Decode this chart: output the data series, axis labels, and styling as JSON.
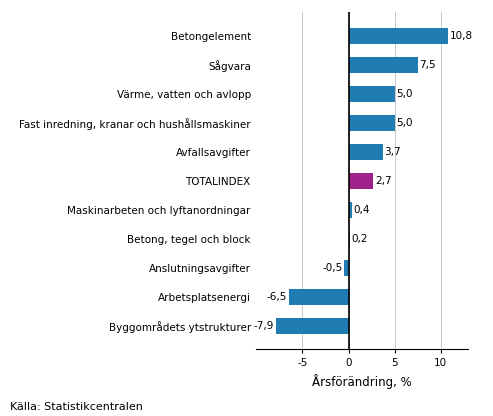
{
  "categories": [
    "Byggområdets ytstrukturer",
    "Arbetsplatsenergi",
    "Anslutningsavgifter",
    "Betong, tegel och block",
    "Maskinarbeten och lyftanordningar",
    "TOTALINDEX",
    "Avfallsavgifter",
    "Fast inredning, kranar och hushållsmaskiner",
    "Värme, vatten och avlopp",
    "Sågvara",
    "Betongelement"
  ],
  "values": [
    -7.9,
    -6.5,
    -0.5,
    0.2,
    0.4,
    2.7,
    3.7,
    5.0,
    5.0,
    7.5,
    10.8
  ],
  "bar_colors": [
    "#1f7db4",
    "#1f7db4",
    "#1f7db4",
    "#1f7db4",
    "#1f7db4",
    "#a0228a",
    "#1f7db4",
    "#1f7db4",
    "#1f7db4",
    "#1f7db4",
    "#1f7db4"
  ],
  "xlabel": "Årsförändring, %",
  "xlim": [
    -10,
    13
  ],
  "xticks": [
    -5,
    0,
    5,
    10
  ],
  "source_text": "Källa: Statistikcentralen",
  "value_labels": [
    "-7,9",
    "-6,5",
    "-0,5",
    "0,2",
    "0,4",
    "2,7",
    "3,7",
    "5,0",
    "5,0",
    "7,5",
    "10,8"
  ],
  "background_color": "#ffffff",
  "bar_height": 0.55,
  "label_fontsize": 7.5,
  "tick_fontsize": 7.5,
  "xlabel_fontsize": 8.5,
  "source_fontsize": 8.0
}
